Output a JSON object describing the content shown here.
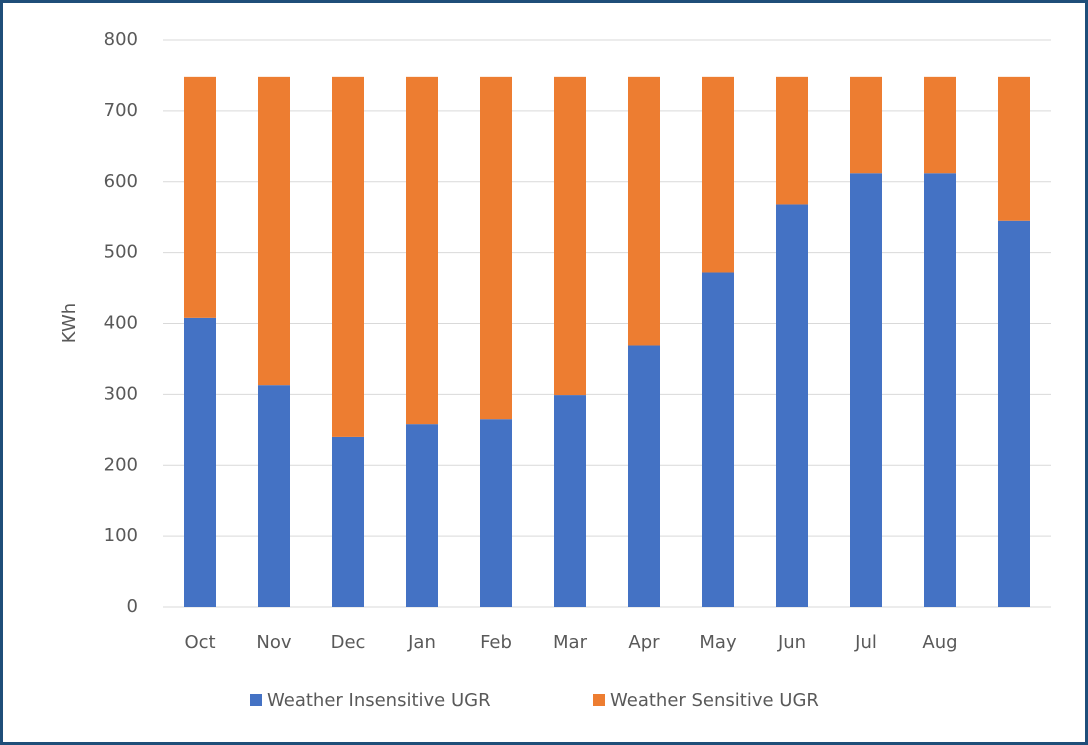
{
  "chart_data": {
    "type": "stacked_bar",
    "y_label": "KWh",
    "categories": [
      "Oct",
      "Nov",
      "Dec",
      "Jan",
      "Feb",
      "Mar",
      "Apr",
      "May",
      "Jun",
      "Jul",
      "Aug",
      null
    ],
    "series": [
      {
        "name": "Weather Insensitive UGR",
        "color": "#4472c4",
        "values": [
          408,
          313,
          240,
          258,
          265,
          299,
          369,
          472,
          568,
          612,
          612,
          545
        ]
      },
      {
        "name": "Weather Sensitive UGR",
        "color": "#ed7d31",
        "values": [
          340,
          435,
          508,
          490,
          483,
          449,
          379,
          276,
          180,
          136,
          136,
          203
        ]
      }
    ],
    "ylim": [
      0,
      800
    ],
    "yticks": [
      0,
      100,
      200,
      300,
      400,
      500,
      600,
      700,
      800
    ],
    "grid": true,
    "legend": "bottom"
  }
}
